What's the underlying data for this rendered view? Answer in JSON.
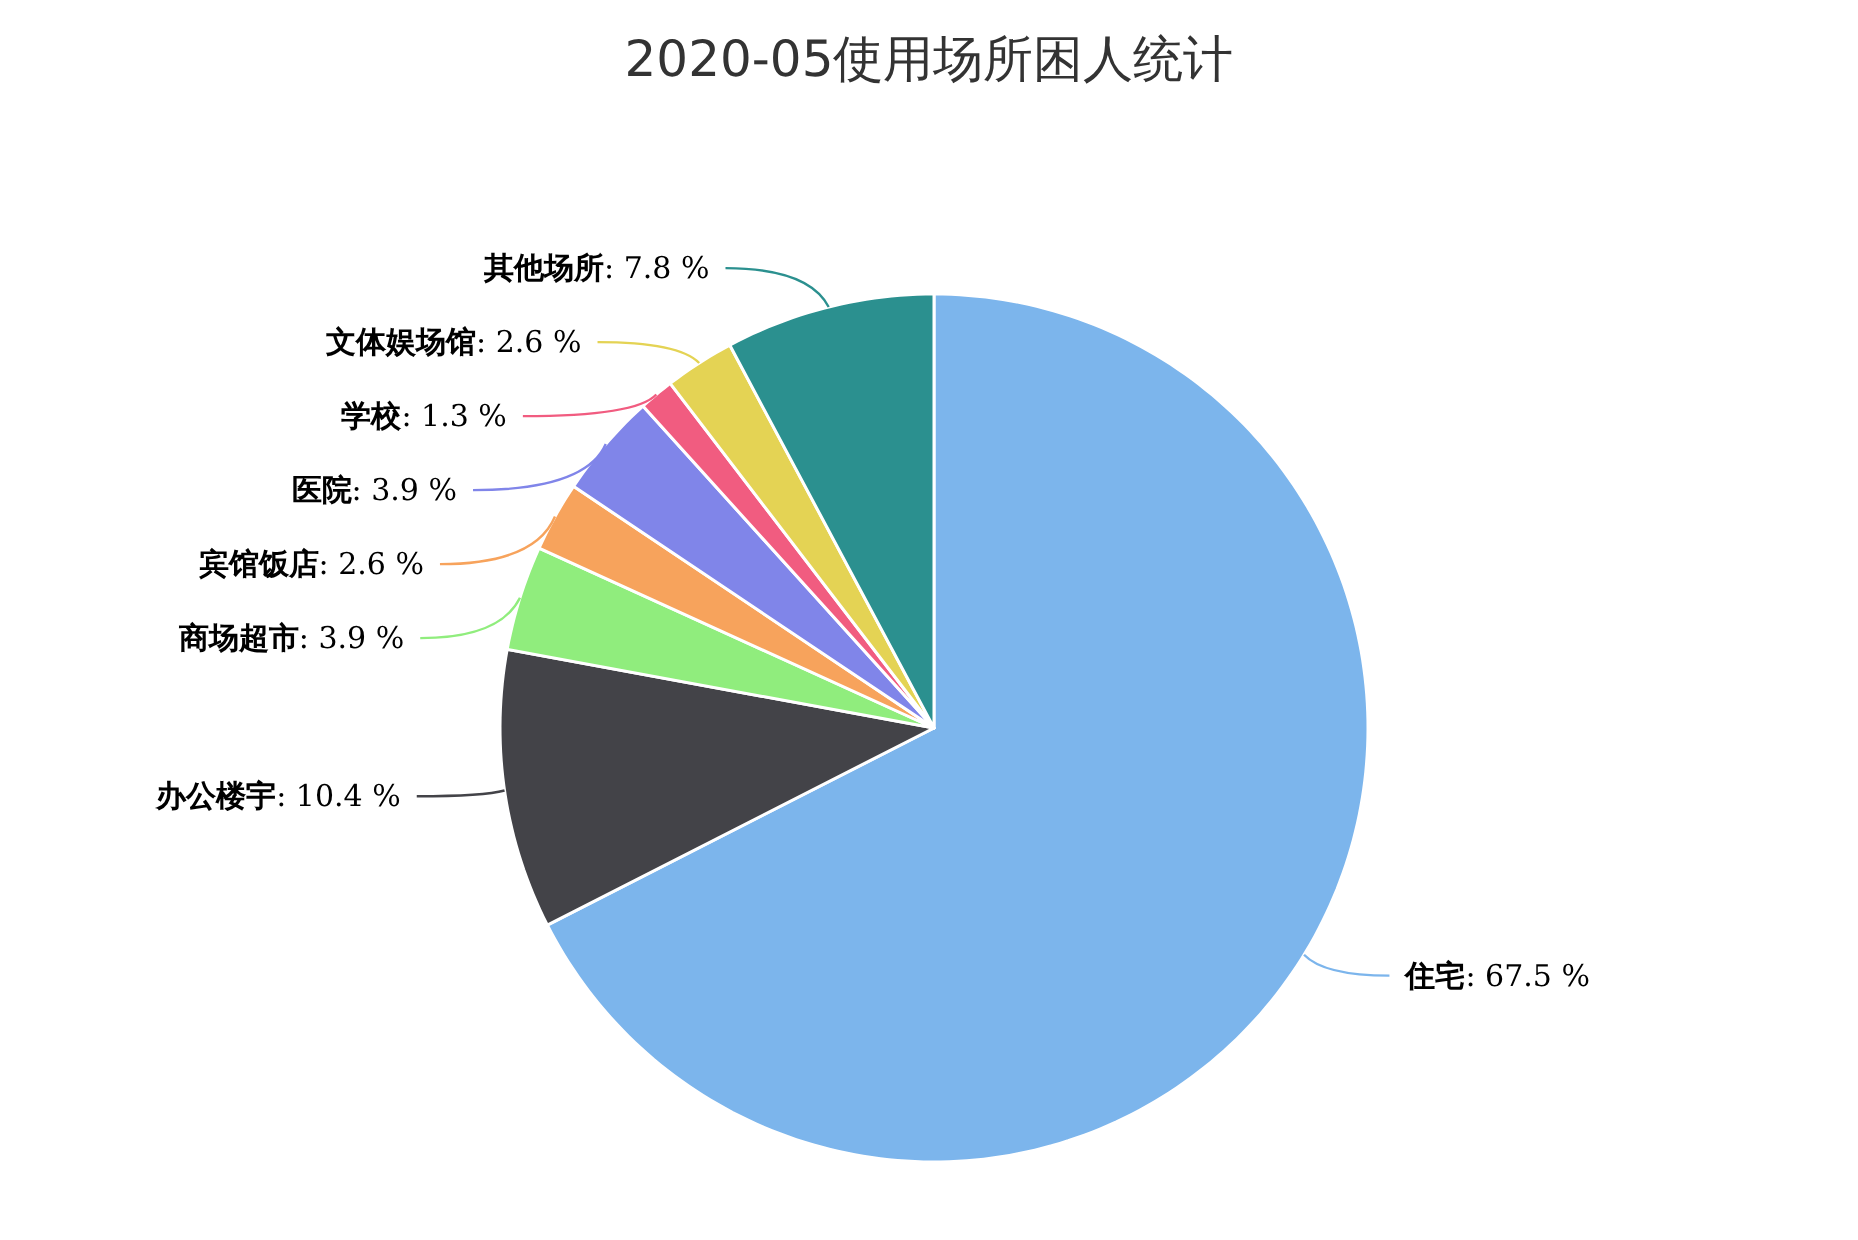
{
  "chart_data": {
    "type": "pie",
    "title": "2020-05使用场所困人统计",
    "categories": [
      "住宅",
      "办公楼宇",
      "商场超市",
      "宾馆饭店",
      "医院",
      "学校",
      "文体娱场馆",
      "其他场所"
    ],
    "values": [
      67.5,
      10.4,
      3.9,
      2.6,
      3.9,
      1.3,
      2.6,
      7.8
    ],
    "value_labels": [
      ": 67.5 %",
      ": 10.4 %",
      ": 3.9 %",
      ": 2.6 %",
      ": 3.9 %",
      ": 1.3 %",
      ": 2.6 %",
      ": 7.8 %"
    ],
    "colors": [
      "#7cb5ec",
      "#434348",
      "#90ed7d",
      "#f7a35c",
      "#8085e9",
      "#f15c80",
      "#e4d354",
      "#2b908f"
    ]
  }
}
